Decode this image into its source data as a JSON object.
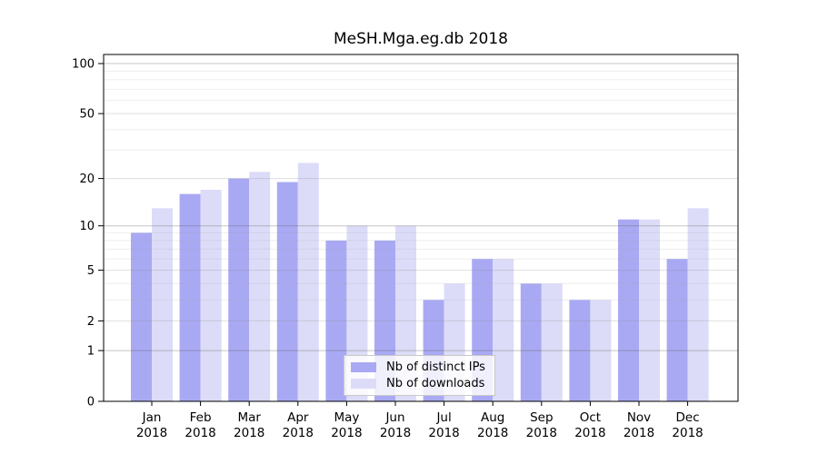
{
  "title": "MeSH.Mga.eg.db 2018",
  "legend": {
    "items": [
      {
        "label": "Nb of distinct IPs",
        "color": "#a9a9f3"
      },
      {
        "label": "Nb of downloads",
        "color": "#dcdcf8"
      }
    ]
  },
  "colors": {
    "bar_distinct_ips": "#a9a9f3",
    "bar_downloads": "#dcdcf8",
    "axis": "#000000",
    "grid_decade": "rgba(90,90,90,0.35)",
    "grid_mid": "rgba(128,128,128,0.25)",
    "grid_minor": "rgba(160,160,160,0.18)",
    "legend_border": "#c9c9c9",
    "background": "#ffffff"
  },
  "chart_data": {
    "type": "bar",
    "title": "MeSH.Mga.eg.db 2018",
    "xlabel": "",
    "ylabel": "",
    "categories": [
      "Jan 2018",
      "Feb 2018",
      "Mar 2018",
      "Apr 2018",
      "May 2018",
      "Jun 2018",
      "Jul 2018",
      "Aug 2018",
      "Sep 2018",
      "Oct 2018",
      "Nov 2018",
      "Dec 2018"
    ],
    "month_labels": [
      "Jan",
      "Feb",
      "Mar",
      "Apr",
      "May",
      "Jun",
      "Jul",
      "Aug",
      "Sep",
      "Oct",
      "Nov",
      "Dec"
    ],
    "year_label": "2018",
    "series": [
      {
        "name": "Nb of distinct IPs",
        "color": "#a9a9f3",
        "values": [
          9,
          16,
          20,
          19,
          8,
          8,
          3,
          6,
          4,
          3,
          11,
          6
        ]
      },
      {
        "name": "Nb of downloads",
        "color": "#dcdcf8",
        "values": [
          13,
          17,
          22,
          25,
          10,
          10,
          4,
          6,
          4,
          3,
          11,
          13
        ]
      }
    ],
    "y_scale": "log1p",
    "ylim": [
      0,
      100
    ],
    "y_ticks": [
      0,
      1,
      2,
      5,
      10,
      20,
      50,
      100
    ],
    "y_mid_gridlines": [
      2,
      5,
      20,
      50
    ],
    "y_decade_gridlines": [
      1,
      10,
      100
    ],
    "y_minor_gridlines": [
      3,
      4,
      6,
      7,
      8,
      9,
      30,
      40,
      60,
      70,
      80,
      90
    ],
    "grid": true,
    "legend_position": "inside-bottom-center"
  }
}
